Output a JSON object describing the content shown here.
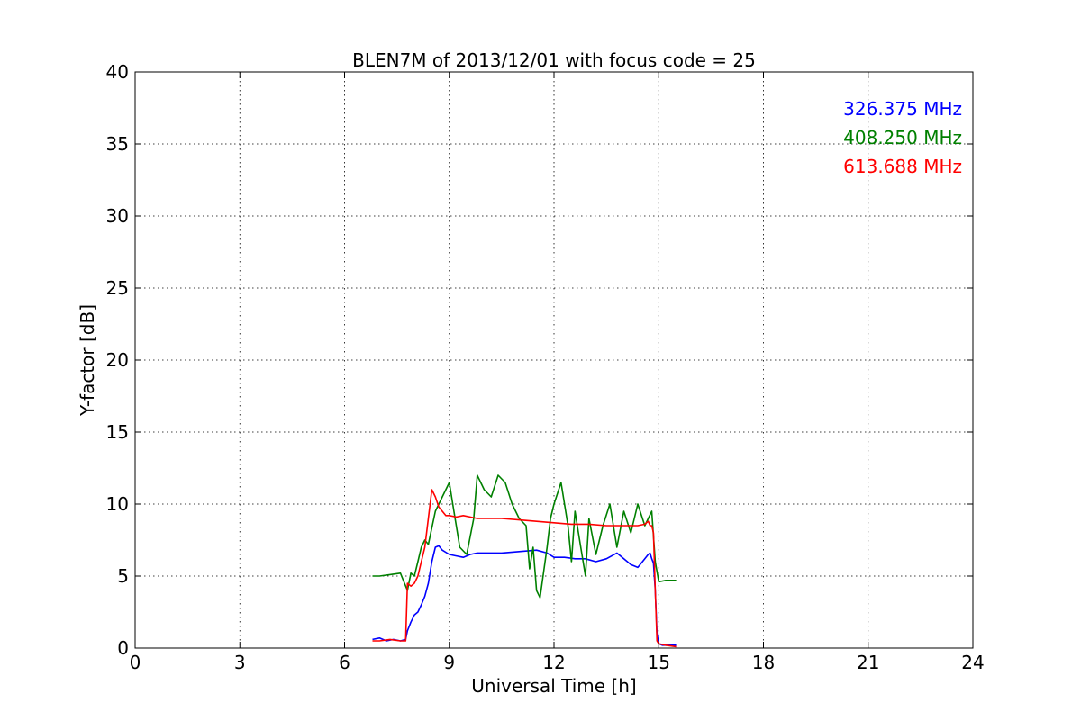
{
  "chart_data": {
    "type": "line",
    "title": "BLEN7M of 2013/12/01 with focus code = 25",
    "xlabel": "Universal Time [h]",
    "ylabel": "Y-factor [dB]",
    "xlim": [
      0,
      24
    ],
    "ylim": [
      0,
      40
    ],
    "xticks": [
      0,
      3,
      6,
      9,
      12,
      15,
      18,
      21,
      24
    ],
    "yticks": [
      0,
      5,
      10,
      15,
      20,
      25,
      30,
      35,
      40
    ],
    "grid": true,
    "legend_position": "top-right",
    "series": [
      {
        "name": "326.375 MHz",
        "color": "#0000ff",
        "x": [
          6.8,
          7.0,
          7.2,
          7.4,
          7.6,
          7.75,
          7.8,
          7.9,
          8.0,
          8.1,
          8.2,
          8.3,
          8.4,
          8.5,
          8.6,
          8.7,
          8.8,
          9.0,
          9.2,
          9.4,
          9.6,
          9.8,
          10.0,
          10.5,
          11.0,
          11.5,
          11.8,
          12.0,
          12.3,
          12.6,
          12.9,
          13.2,
          13.5,
          13.8,
          14.0,
          14.2,
          14.4,
          14.5,
          14.6,
          14.7,
          14.75,
          14.8,
          14.85,
          14.9,
          14.95,
          15.0,
          15.1,
          15.3,
          15.5
        ],
        "y": [
          0.6,
          0.7,
          0.5,
          0.6,
          0.5,
          0.6,
          1.2,
          1.8,
          2.3,
          2.5,
          3.0,
          3.6,
          4.5,
          6.0,
          7.0,
          7.1,
          6.8,
          6.5,
          6.4,
          6.3,
          6.5,
          6.6,
          6.6,
          6.6,
          6.7,
          6.8,
          6.6,
          6.3,
          6.3,
          6.2,
          6.2,
          6.0,
          6.2,
          6.6,
          6.2,
          5.8,
          5.6,
          5.9,
          6.2,
          6.5,
          6.6,
          6.2,
          5.9,
          4.0,
          1.0,
          0.3,
          0.2,
          0.2,
          0.2
        ]
      },
      {
        "name": "408.250 MHz",
        "color": "#008000",
        "x": [
          6.8,
          7.0,
          7.3,
          7.6,
          7.8,
          7.9,
          8.0,
          8.1,
          8.2,
          8.3,
          8.4,
          8.6,
          8.8,
          9.0,
          9.1,
          9.3,
          9.5,
          9.7,
          9.8,
          10.0,
          10.2,
          10.4,
          10.6,
          10.8,
          11.0,
          11.2,
          11.3,
          11.4,
          11.5,
          11.6,
          11.8,
          11.9,
          12.0,
          12.2,
          12.4,
          12.5,
          12.6,
          12.7,
          12.9,
          13.0,
          13.2,
          13.4,
          13.6,
          13.8,
          14.0,
          14.2,
          14.4,
          14.6,
          14.8,
          14.9,
          15.0,
          15.2,
          15.5
        ],
        "y": [
          5.0,
          5.0,
          5.1,
          5.2,
          4.0,
          5.2,
          5.0,
          6.0,
          7.0,
          7.5,
          7.2,
          9.5,
          10.5,
          11.5,
          10.0,
          7.0,
          6.5,
          9.0,
          12.0,
          11.0,
          10.5,
          12.0,
          11.5,
          10.0,
          9.0,
          8.5,
          5.5,
          7.0,
          4.0,
          3.5,
          7.0,
          9.0,
          10.0,
          11.5,
          8.5,
          6.0,
          9.5,
          8.0,
          5.0,
          9.0,
          6.5,
          8.5,
          10.0,
          7.0,
          9.5,
          8.0,
          10.0,
          8.5,
          9.5,
          6.0,
          4.6,
          4.7,
          4.7
        ]
      },
      {
        "name": "613.688 MHz",
        "color": "#ff0000",
        "x": [
          6.8,
          7.0,
          7.3,
          7.6,
          7.7,
          7.75,
          7.8,
          7.9,
          8.0,
          8.1,
          8.2,
          8.3,
          8.4,
          8.5,
          8.6,
          8.7,
          8.8,
          8.9,
          9.0,
          9.2,
          9.4,
          9.6,
          9.8,
          10.0,
          10.5,
          11.0,
          11.5,
          12.0,
          12.5,
          13.0,
          13.5,
          14.0,
          14.4,
          14.6,
          14.7,
          14.75,
          14.8,
          14.85,
          14.9,
          14.95,
          15.0,
          15.2,
          15.5
        ],
        "y": [
          0.5,
          0.5,
          0.6,
          0.5,
          0.5,
          0.5,
          4.5,
          4.3,
          4.5,
          5.0,
          6.0,
          7.0,
          9.0,
          11.0,
          10.5,
          9.8,
          9.5,
          9.2,
          9.2,
          9.1,
          9.2,
          9.1,
          9.0,
          9.0,
          9.0,
          8.9,
          8.8,
          8.7,
          8.6,
          8.6,
          8.5,
          8.5,
          8.5,
          8.6,
          8.8,
          8.5,
          8.5,
          8.0,
          4.0,
          0.5,
          0.3,
          0.2,
          0.1
        ]
      }
    ]
  }
}
